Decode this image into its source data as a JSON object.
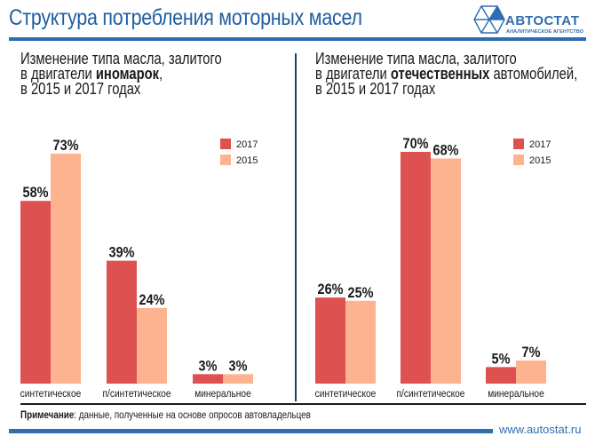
{
  "header": {
    "title": "Структура потребления моторных масел",
    "logo_name": "АВТОСТАТ",
    "logo_sub": "АНАЛИТИЧЕСКОЕ АГЕНТСТВО",
    "brand_color": "#2e6db2"
  },
  "footer": {
    "note_label": "Примечание",
    "note_text": ": данные, полученные на основе опросов автовладельцев",
    "site": "www.autostat.ru"
  },
  "chart_data": [
    {
      "type": "bar",
      "title_line1": "Изменение типа масла, залитого",
      "title_line2_pre": "в двигатели ",
      "title_line2_bold": "иномарок",
      "title_line2_post": ",",
      "title_line3": "в 2015 и 2017 годах",
      "categories": [
        "синтетическое",
        "п/синтетическое",
        "минеральное"
      ],
      "series": [
        {
          "name": "2017",
          "color": "#dd5150",
          "values": [
            58,
            39,
            3
          ],
          "labels": [
            "58%",
            "39%",
            "3%"
          ]
        },
        {
          "name": "2015",
          "color": "#fdb38f",
          "values": [
            73,
            24,
            3
          ],
          "labels": [
            "73%",
            "24%",
            "3%"
          ]
        }
      ],
      "unit": "%",
      "ylim": [
        0,
        73
      ],
      "legend": "top-right",
      "grid": false
    },
    {
      "type": "bar",
      "title_line1": "Изменение типа масла, залитого",
      "title_line2_pre": "в двигатели ",
      "title_line2_bold": "отечественных",
      "title_line2_post": " автомобилей,",
      "title_line3": "в 2015 и 2017 годах",
      "categories": [
        "синтетическое",
        "п/синтетическое",
        "минеральное"
      ],
      "series": [
        {
          "name": "2017",
          "color": "#dd5150",
          "values": [
            26,
            70,
            5
          ],
          "labels": [
            "26%",
            "70%",
            "5%"
          ]
        },
        {
          "name": "2015",
          "color": "#fdb38f",
          "values": [
            25,
            68,
            7
          ],
          "labels": [
            "25%",
            "68%",
            "7%"
          ]
        }
      ],
      "unit": "%",
      "ylim": [
        0,
        70
      ],
      "legend": "top-right",
      "grid": false
    }
  ]
}
